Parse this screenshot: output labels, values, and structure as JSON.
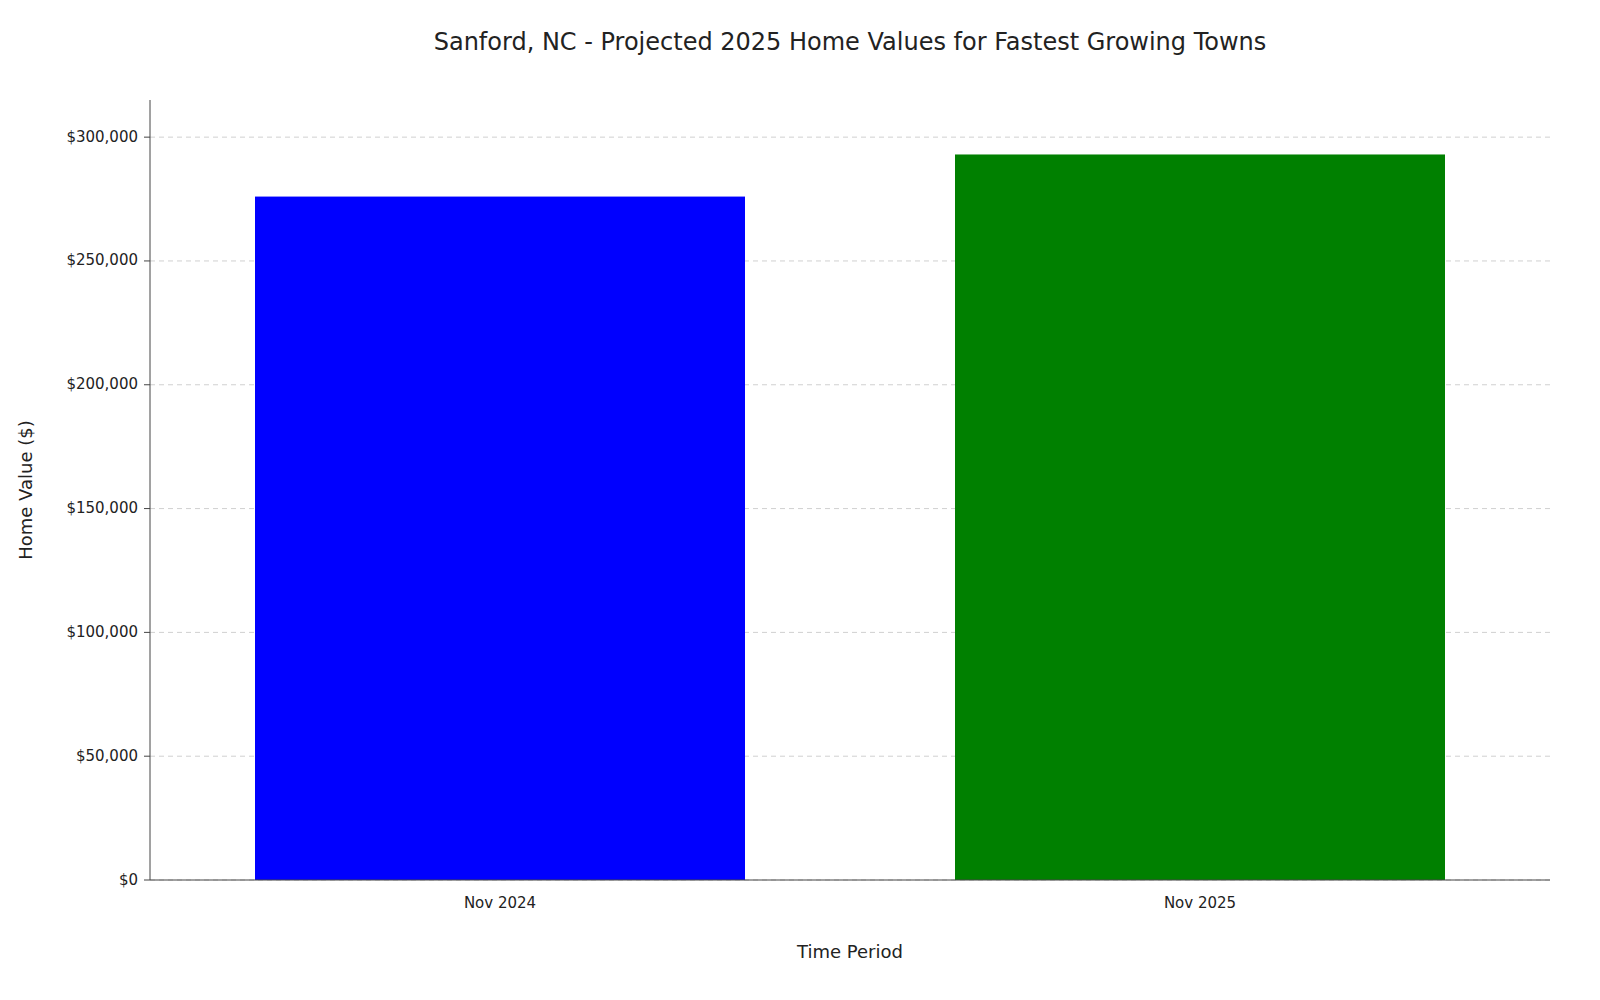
{
  "chart_data": {
    "type": "bar",
    "title": "Sanford, NC - Projected 2025 Home Values for Fastest Growing Towns",
    "xlabel": "Time Period",
    "ylabel": "Home Value ($)",
    "categories": [
      "Nov 2024",
      "Nov 2025"
    ],
    "values": [
      276000,
      293000
    ],
    "colors": [
      "#0000ff",
      "#008000"
    ],
    "ylim": [
      0,
      315000
    ],
    "yticks": [
      {
        "value": 0,
        "label": "$0"
      },
      {
        "value": 50000,
        "label": "$50,000"
      },
      {
        "value": 100000,
        "label": "$100,000"
      },
      {
        "value": 150000,
        "label": "$150,000"
      },
      {
        "value": 200000,
        "label": "$200,000"
      },
      {
        "value": 250000,
        "label": "$250,000"
      },
      {
        "value": 300000,
        "label": "$300,000"
      }
    ],
    "grid": true
  }
}
